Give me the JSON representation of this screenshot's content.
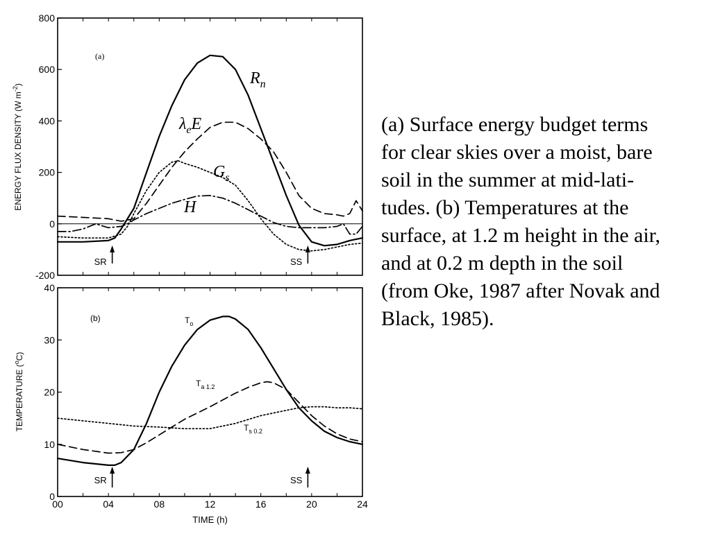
{
  "caption": "(a) Surface energy budget terms\nfor clear skies over a moist, bare\nsoil in the summer at mid-lati-\ntudes.  (b) Temperatures at the\nsurface, at 1.2 m height in the air,\nand at 0.2 m depth in the soil\n(from Oke, 1987 after Novak and\nBlack, 1985).",
  "chart_data": [
    {
      "type": "line",
      "panel_label": "(a)",
      "ylabel": "ENERGY FLUX DENSITY (W m",
      "ylabel_sup": "-2",
      "ylabel_end": ")",
      "ylim": [
        -200,
        800
      ],
      "yticks": [
        -200,
        0,
        200,
        400,
        600,
        800
      ],
      "ytick_labels": [
        "-200",
        "0",
        "200",
        "400",
        "600",
        "800"
      ],
      "xlim": [
        0,
        24
      ],
      "zero_line": true,
      "markers": [
        {
          "label": "SR",
          "x": 4.3
        },
        {
          "label": "SS",
          "x": 19.7
        }
      ],
      "series": [
        {
          "name": "R",
          "subscript": "n",
          "style": "solid",
          "x": [
            0,
            2,
            4,
            4.5,
            5,
            6,
            7,
            8,
            9,
            10,
            11,
            12,
            13,
            14,
            15,
            16,
            17,
            18,
            19,
            20,
            21,
            22,
            23,
            24
          ],
          "y": [
            -70,
            -70,
            -65,
            -55,
            -20,
            60,
            200,
            340,
            460,
            560,
            625,
            655,
            650,
            600,
            500,
            370,
            240,
            110,
            -5,
            -70,
            -85,
            -80,
            -65,
            -55
          ]
        },
        {
          "name": "λ",
          "name_sub": "e",
          "name_tail": "E",
          "style": "dashed",
          "x": [
            0,
            2,
            4,
            5,
            6,
            7,
            8,
            9,
            10,
            11,
            12,
            13,
            14,
            15,
            16,
            17,
            18,
            19,
            20,
            21,
            22,
            22.5,
            23,
            23.5,
            24
          ],
          "y": [
            30,
            25,
            20,
            10,
            20,
            80,
            150,
            220,
            280,
            330,
            375,
            395,
            395,
            370,
            330,
            280,
            200,
            110,
            60,
            40,
            35,
            30,
            40,
            90,
            50
          ]
        },
        {
          "name": "G",
          "subscript": "s",
          "style": "dotted",
          "x": [
            0,
            2,
            4,
            5,
            5.5,
            6,
            7,
            8,
            9,
            9.5,
            10,
            11,
            12,
            13,
            14,
            15,
            16,
            17,
            18,
            19,
            20,
            21,
            22,
            23,
            24
          ],
          "y": [
            -50,
            -55,
            -55,
            -40,
            -10,
            40,
            130,
            200,
            240,
            245,
            235,
            220,
            200,
            180,
            150,
            90,
            20,
            -40,
            -80,
            -100,
            -105,
            -100,
            -90,
            -80,
            -75
          ]
        },
        {
          "name": "H",
          "style": "dash-dot",
          "x": [
            0,
            1,
            2,
            3,
            4,
            5,
            5.5,
            6,
            7,
            8,
            9,
            10,
            11,
            12,
            13,
            14,
            15,
            16,
            17,
            18,
            19,
            20,
            21,
            22,
            22.5,
            23,
            23.5,
            24
          ],
          "y": [
            -30,
            -30,
            -20,
            0,
            -15,
            -10,
            0,
            15,
            40,
            60,
            80,
            95,
            108,
            110,
            100,
            80,
            55,
            30,
            5,
            -10,
            -15,
            -15,
            -15,
            -10,
            0,
            -40,
            -40,
            -10
          ]
        }
      ]
    },
    {
      "type": "line",
      "panel_label": "(b)",
      "ylabel": "TEMPERATURE (",
      "ylabel_sup": "o",
      "ylabel_end": "C)",
      "xlabel": "TIME (h)",
      "ylim": [
        0,
        40
      ],
      "yticks": [
        0,
        10,
        20,
        30,
        40
      ],
      "ytick_labels": [
        "0",
        "10",
        "20",
        "30",
        "40"
      ],
      "xlim": [
        0,
        24
      ],
      "xticks": [
        0,
        4,
        8,
        12,
        16,
        20,
        24
      ],
      "xtick_labels": [
        "00",
        "04",
        "08",
        "12",
        "16",
        "20",
        "24"
      ],
      "markers": [
        {
          "label": "SR",
          "x": 4.3
        },
        {
          "label": "SS",
          "x": 19.7
        }
      ],
      "series": [
        {
          "name": "T",
          "subscript": "o",
          "style": "solid",
          "x": [
            0,
            2,
            4,
            4.5,
            5,
            6,
            7,
            8,
            9,
            10,
            11,
            12,
            13,
            13.5,
            14,
            15,
            16,
            17,
            18,
            19,
            20,
            21,
            22,
            23,
            24
          ],
          "y": [
            7.3,
            6.5,
            6.0,
            6.0,
            6.5,
            9.0,
            14.0,
            20.0,
            25.0,
            29.0,
            32.0,
            33.8,
            34.5,
            34.5,
            34.0,
            32.0,
            28.5,
            24.5,
            20.5,
            17.0,
            14.5,
            12.5,
            11.3,
            10.5,
            10.0
          ]
        },
        {
          "name": "T",
          "subscript": "a 1.2",
          "style": "dashed",
          "x": [
            0,
            2,
            4,
            5,
            6,
            7,
            8,
            9,
            10,
            11,
            12,
            13,
            14,
            15,
            16,
            16.5,
            17,
            18,
            19,
            20,
            21,
            22,
            23,
            24
          ],
          "y": [
            10.0,
            9.0,
            8.3,
            8.4,
            9.0,
            10.3,
            11.8,
            13.3,
            14.8,
            16.0,
            17.2,
            18.5,
            19.8,
            20.9,
            21.8,
            22.0,
            21.8,
            20.5,
            18.0,
            15.5,
            13.5,
            12.0,
            11.0,
            10.5
          ]
        },
        {
          "name": "T",
          "subscript": "s 0.2",
          "style": "dotted",
          "x": [
            0,
            2,
            4,
            6,
            8,
            10,
            12,
            14,
            16,
            18,
            19,
            20,
            21,
            22,
            23,
            24
          ],
          "y": [
            15.0,
            14.5,
            14.0,
            13.5,
            13.3,
            13.0,
            13.0,
            14.0,
            15.5,
            16.5,
            17.0,
            17.2,
            17.2,
            17.0,
            17.0,
            16.8
          ]
        }
      ]
    }
  ]
}
